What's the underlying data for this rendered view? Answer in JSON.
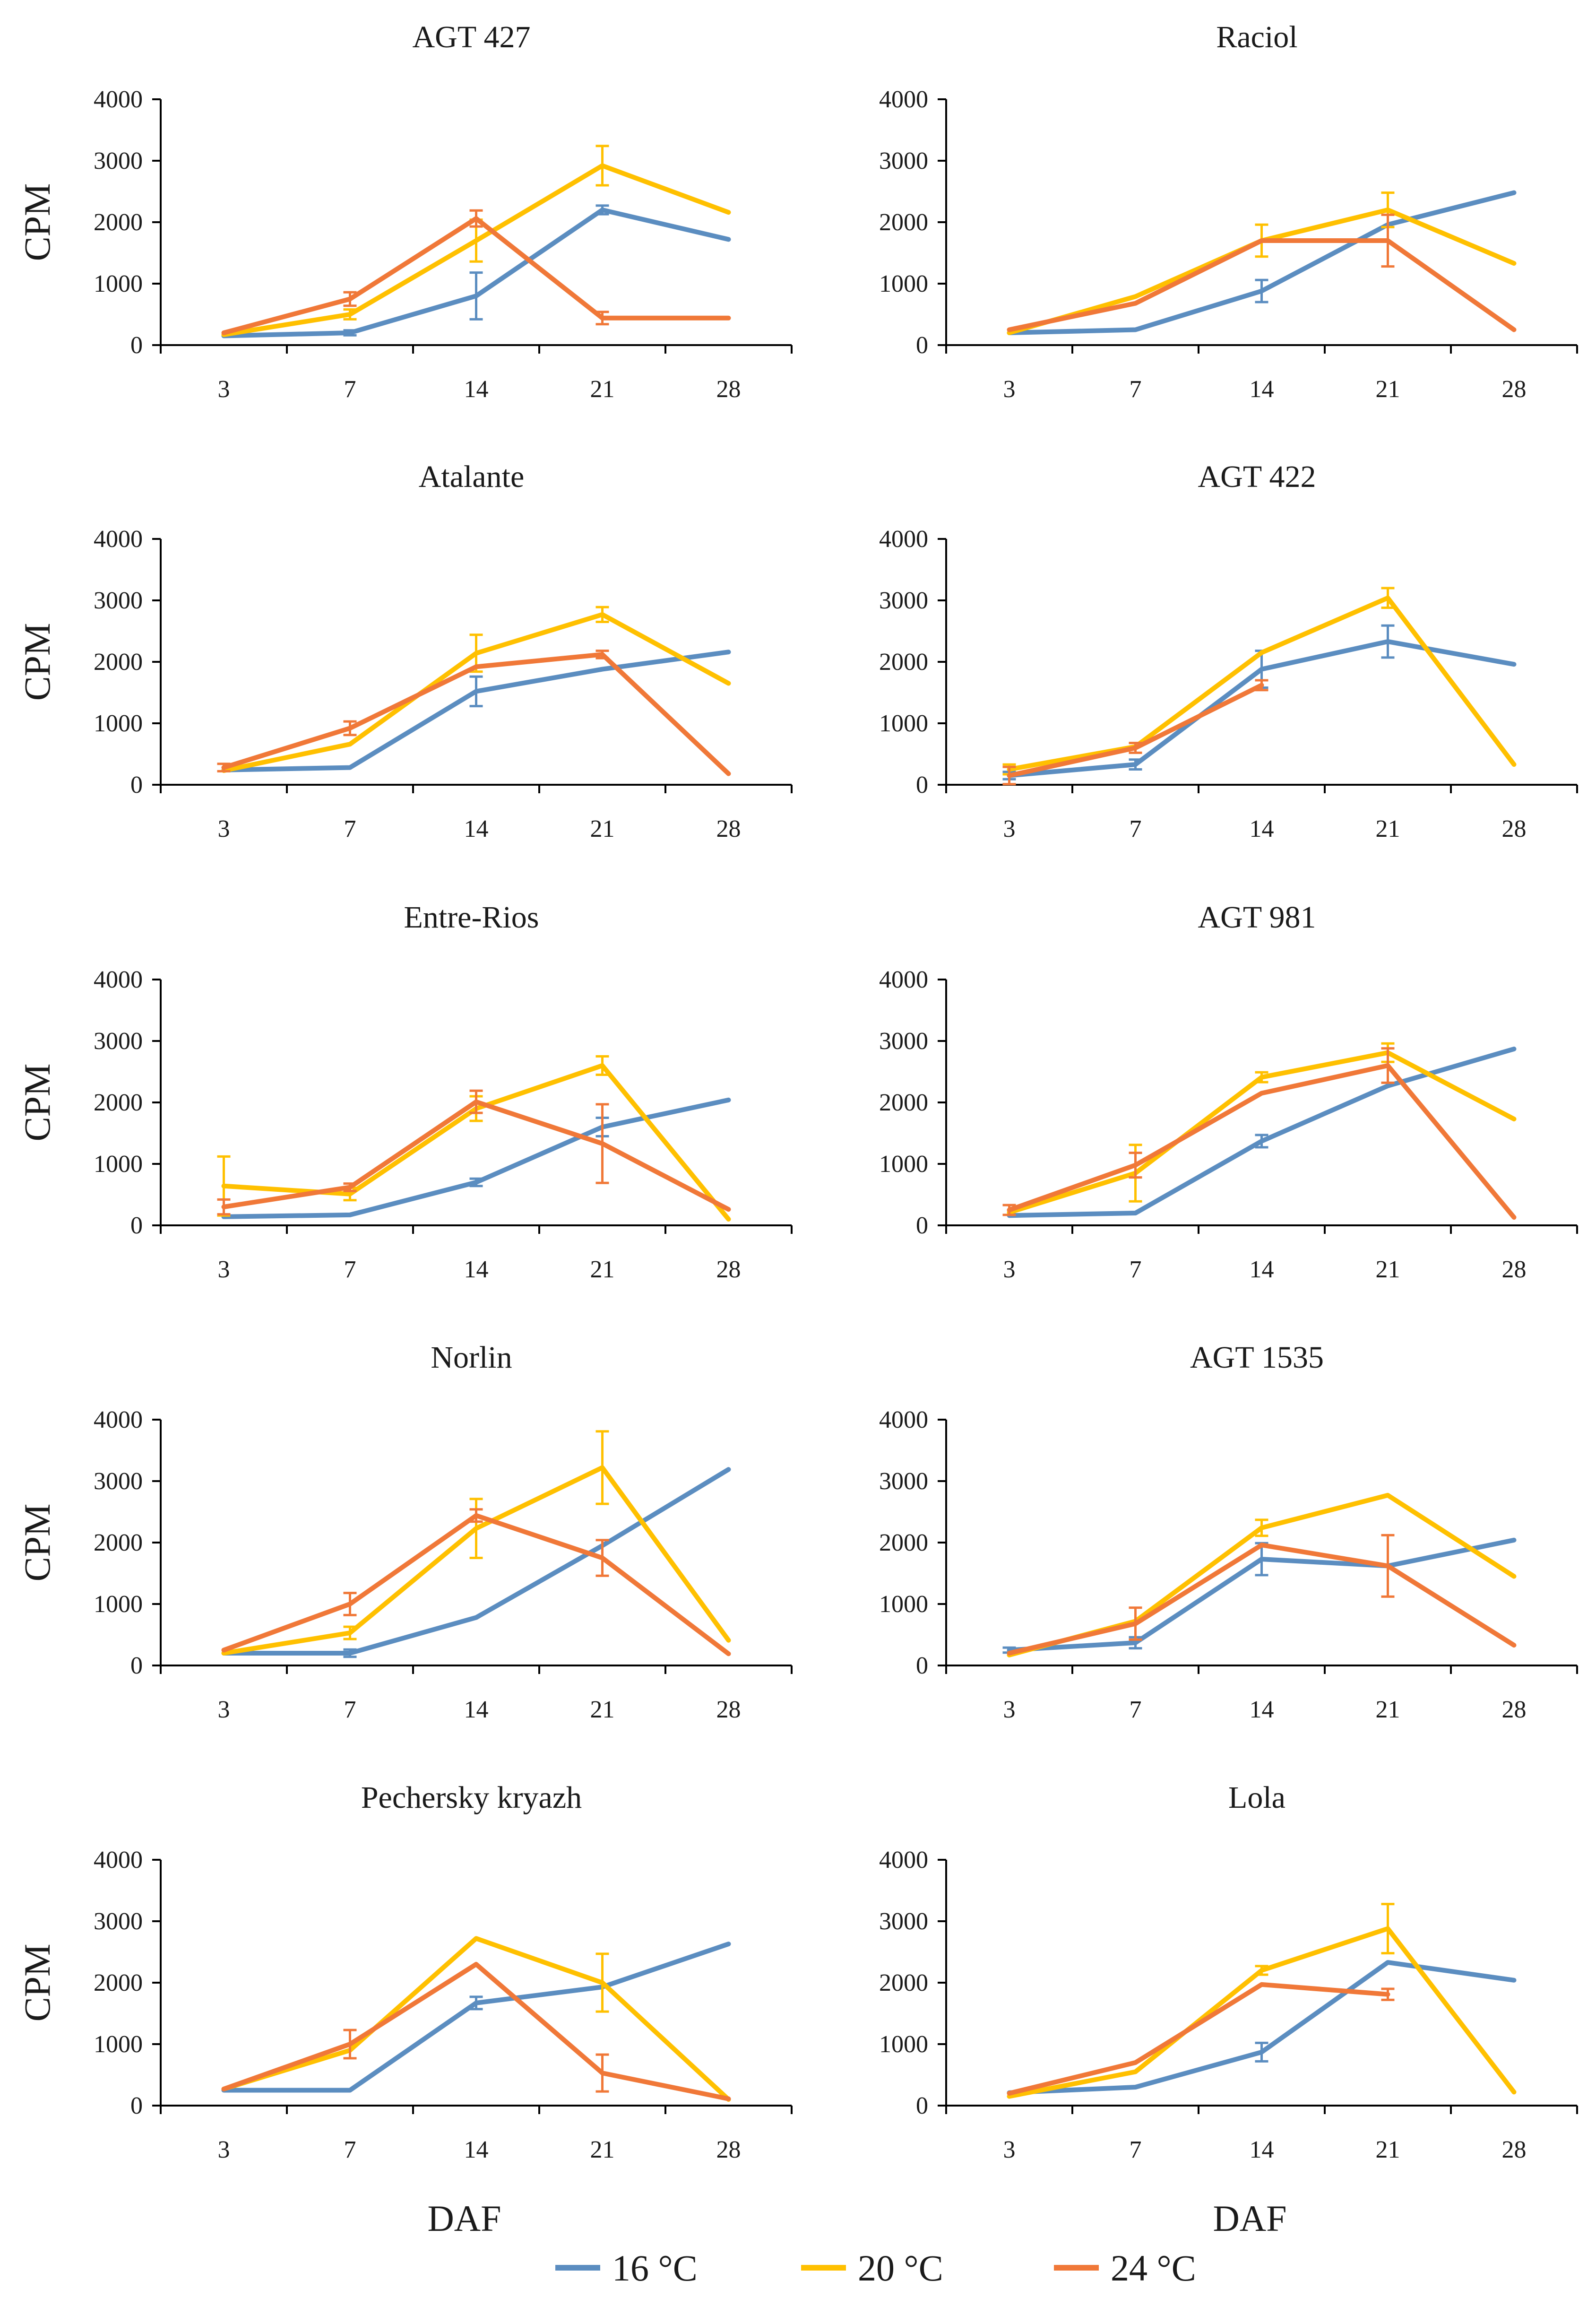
{
  "colors": {
    "16": "#5B8DC0",
    "20": "#FFC000",
    "24": "#F07838"
  },
  "legend": [
    {
      "key": "16",
      "label": "16 °C"
    },
    {
      "key": "20",
      "label": "20 °C"
    },
    {
      "key": "24",
      "label": "24 °C"
    }
  ],
  "chart_data": [
    {
      "type": "line",
      "title": "AGT 427",
      "categories": [
        "3",
        "7",
        "14",
        "21",
        "28"
      ],
      "xlabel": "",
      "ylabel": "CPM",
      "ylim": [
        0,
        4000
      ],
      "yticks": [
        0,
        1000,
        2000,
        3000,
        4000
      ],
      "series": [
        {
          "name": "16 °C",
          "key": "16",
          "values": [
            150,
            200,
            800,
            2200,
            1720
          ],
          "errors": [
            0,
            40,
            380,
            70,
            0
          ]
        },
        {
          "name": "20 °C",
          "key": "20",
          "values": [
            170,
            500,
            1700,
            2920,
            2160
          ],
          "errors": [
            0,
            80,
            340,
            320,
            0
          ]
        },
        {
          "name": "24 °C",
          "key": "24",
          "values": [
            200,
            750,
            2060,
            440,
            440
          ],
          "errors": [
            0,
            110,
            130,
            100,
            0
          ]
        }
      ]
    },
    {
      "type": "line",
      "title": "Raciol",
      "categories": [
        "3",
        "7",
        "14",
        "21",
        "28"
      ],
      "xlabel": "",
      "ylabel": "",
      "ylim": [
        0,
        4000
      ],
      "yticks": [
        0,
        1000,
        2000,
        3000,
        4000
      ],
      "series": [
        {
          "name": "16 °C",
          "key": "16",
          "values": [
            200,
            250,
            880,
            1960,
            2480
          ],
          "errors": [
            0,
            0,
            180,
            0,
            0
          ]
        },
        {
          "name": "20 °C",
          "key": "20",
          "values": [
            200,
            790,
            1700,
            2200,
            1330
          ],
          "errors": [
            0,
            0,
            260,
            280,
            0
          ]
        },
        {
          "name": "24 °C",
          "key": "24",
          "values": [
            250,
            680,
            1700,
            1700,
            250
          ],
          "errors": [
            0,
            0,
            0,
            420,
            0
          ]
        }
      ]
    },
    {
      "type": "line",
      "title": "Atalante",
      "categories": [
        "3",
        "7",
        "14",
        "21",
        "28"
      ],
      "xlabel": "",
      "ylabel": "CPM",
      "ylim": [
        0,
        4000
      ],
      "yticks": [
        0,
        1000,
        2000,
        3000,
        4000
      ],
      "series": [
        {
          "name": "16 °C",
          "key": "16",
          "values": [
            240,
            280,
            1520,
            1880,
            2160
          ],
          "errors": [
            0,
            0,
            240,
            0,
            0
          ]
        },
        {
          "name": "20 °C",
          "key": "20",
          "values": [
            230,
            660,
            2140,
            2770,
            1650
          ],
          "errors": [
            0,
            0,
            300,
            120,
            0
          ]
        },
        {
          "name": "24 °C",
          "key": "24",
          "values": [
            280,
            920,
            1920,
            2120,
            180
          ],
          "errors": [
            60,
            110,
            0,
            60,
            0
          ]
        }
      ]
    },
    {
      "type": "line",
      "title": "AGT 422",
      "categories": [
        "3",
        "7",
        "14",
        "21",
        "28"
      ],
      "xlabel": "",
      "ylabel": "",
      "ylim": [
        0,
        4000
      ],
      "yticks": [
        0,
        1000,
        2000,
        3000,
        4000
      ],
      "series": [
        {
          "name": "16 °C",
          "key": "16",
          "values": [
            150,
            330,
            1880,
            2330,
            1960
          ],
          "errors": [
            60,
            80,
            300,
            260,
            0
          ]
        },
        {
          "name": "20 °C",
          "key": "20",
          "values": [
            250,
            620,
            2150,
            3040,
            330
          ],
          "errors": [
            80,
            0,
            0,
            160,
            0
          ]
        },
        {
          "name": "24 °C",
          "key": "24",
          "values": [
            150,
            600,
            1620,
            null,
            null
          ],
          "errors": [
            140,
            80,
            80,
            0,
            0
          ]
        }
      ]
    },
    {
      "type": "line",
      "title": "Entre-Rios",
      "categories": [
        "3",
        "7",
        "14",
        "21",
        "28"
      ],
      "xlabel": "",
      "ylabel": "CPM",
      "ylim": [
        0,
        4000
      ],
      "yticks": [
        0,
        1000,
        2000,
        3000,
        4000
      ],
      "series": [
        {
          "name": "16 °C",
          "key": "16",
          "values": [
            140,
            170,
            700,
            1600,
            2040
          ],
          "errors": [
            0,
            0,
            60,
            150,
            0
          ]
        },
        {
          "name": "20 °C",
          "key": "20",
          "values": [
            640,
            510,
            1900,
            2600,
            100
          ],
          "errors": [
            480,
            100,
            200,
            150,
            0
          ]
        },
        {
          "name": "24 °C",
          "key": "24",
          "values": [
            300,
            620,
            2010,
            1330,
            260
          ],
          "errors": [
            120,
            60,
            180,
            640,
            0
          ]
        }
      ]
    },
    {
      "type": "line",
      "title": "AGT 981",
      "categories": [
        "3",
        "7",
        "14",
        "21",
        "28"
      ],
      "xlabel": "",
      "ylabel": "",
      "ylim": [
        0,
        4000
      ],
      "yticks": [
        0,
        1000,
        2000,
        3000,
        4000
      ],
      "series": [
        {
          "name": "16 °C",
          "key": "16",
          "values": [
            160,
            200,
            1370,
            2270,
            2870
          ],
          "errors": [
            0,
            0,
            100,
            0,
            0
          ]
        },
        {
          "name": "20 °C",
          "key": "20",
          "values": [
            210,
            850,
            2410,
            2810,
            1730
          ],
          "errors": [
            0,
            460,
            80,
            150,
            0
          ]
        },
        {
          "name": "24 °C",
          "key": "24",
          "values": [
            250,
            980,
            2150,
            2600,
            130
          ],
          "errors": [
            80,
            200,
            0,
            280,
            0
          ]
        }
      ]
    },
    {
      "type": "line",
      "title": "Norlin",
      "categories": [
        "3",
        "7",
        "14",
        "21",
        "28"
      ],
      "xlabel": "",
      "ylabel": "CPM",
      "ylim": [
        0,
        4000
      ],
      "yticks": [
        0,
        1000,
        2000,
        3000,
        4000
      ],
      "series": [
        {
          "name": "16 °C",
          "key": "16",
          "values": [
            200,
            200,
            780,
            1950,
            3190
          ],
          "errors": [
            0,
            60,
            0,
            0,
            0
          ]
        },
        {
          "name": "20 °C",
          "key": "20",
          "values": [
            200,
            530,
            2230,
            3220,
            410
          ],
          "errors": [
            0,
            100,
            480,
            590,
            0
          ]
        },
        {
          "name": "24 °C",
          "key": "24",
          "values": [
            250,
            1000,
            2440,
            1750,
            190
          ],
          "errors": [
            0,
            180,
            100,
            290,
            0
          ]
        }
      ]
    },
    {
      "type": "line",
      "title": "AGT 1535",
      "categories": [
        "3",
        "7",
        "14",
        "21",
        "28"
      ],
      "xlabel": "",
      "ylabel": "",
      "ylim": [
        0,
        4000
      ],
      "yticks": [
        0,
        1000,
        2000,
        3000,
        4000
      ],
      "series": [
        {
          "name": "16 °C",
          "key": "16",
          "values": [
            250,
            370,
            1730,
            1620,
            2040
          ],
          "errors": [
            40,
            90,
            260,
            0,
            0
          ]
        },
        {
          "name": "20 °C",
          "key": "20",
          "values": [
            170,
            720,
            2240,
            2770,
            1450
          ],
          "errors": [
            0,
            0,
            130,
            0,
            0
          ]
        },
        {
          "name": "24 °C",
          "key": "24",
          "values": [
            200,
            680,
            1960,
            1620,
            330
          ],
          "errors": [
            0,
            260,
            0,
            500,
            0
          ]
        }
      ]
    },
    {
      "type": "line",
      "title": "Pechersky kryazh",
      "categories": [
        "3",
        "7",
        "14",
        "21",
        "28"
      ],
      "xlabel": "DAF",
      "ylabel": "CPM",
      "ylim": [
        0,
        4000
      ],
      "yticks": [
        0,
        1000,
        2000,
        3000,
        4000
      ],
      "series": [
        {
          "name": "16 °C",
          "key": "16",
          "values": [
            250,
            250,
            1670,
            1930,
            2630
          ],
          "errors": [
            0,
            0,
            100,
            0,
            0
          ]
        },
        {
          "name": "20 °C",
          "key": "20",
          "values": [
            270,
            900,
            2720,
            2000,
            100
          ],
          "errors": [
            0,
            0,
            0,
            470,
            0
          ]
        },
        {
          "name": "24 °C",
          "key": "24",
          "values": [
            270,
            1000,
            2300,
            530,
            110
          ],
          "errors": [
            0,
            230,
            0,
            300,
            0
          ]
        }
      ]
    },
    {
      "type": "line",
      "title": "Lola",
      "categories": [
        "3",
        "7",
        "14",
        "21",
        "28"
      ],
      "xlabel": "DAF",
      "ylabel": "",
      "ylim": [
        0,
        4000
      ],
      "yticks": [
        0,
        1000,
        2000,
        3000,
        4000
      ],
      "series": [
        {
          "name": "16 °C",
          "key": "16",
          "values": [
            210,
            300,
            870,
            2330,
            2040
          ],
          "errors": [
            0,
            0,
            150,
            0,
            0
          ]
        },
        {
          "name": "20 °C",
          "key": "20",
          "values": [
            150,
            550,
            2200,
            2880,
            220
          ],
          "errors": [
            0,
            0,
            70,
            400,
            0
          ]
        },
        {
          "name": "24 °C",
          "key": "24",
          "values": [
            200,
            700,
            1970,
            1810,
            null
          ],
          "errors": [
            0,
            0,
            0,
            90,
            0
          ]
        }
      ]
    }
  ]
}
